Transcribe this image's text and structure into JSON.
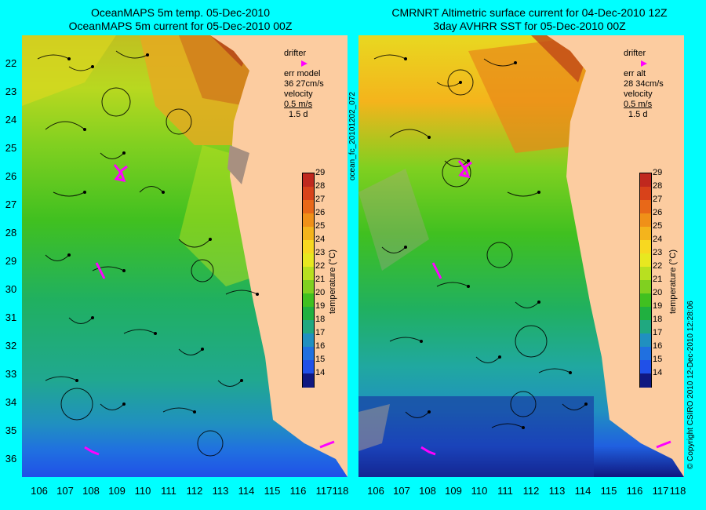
{
  "left_title": "OceanMAPS 5m temp. 05-Dec-2010\nOceanMAPS 5m current for 05-Dec-2010 00Z",
  "right_title": "CMRNRT Altimetric surface current for 04-Dec-2010 12Z\n3day AVHRR SST for 05-Dec-2010 00Z",
  "left_legend": {
    "drifter": "drifter",
    "err_label": "err model",
    "err_values": "36 27cm/s",
    "velocity": "velocity",
    "vel_scale": "0.5 m/s",
    "vel_days": "1.5 d"
  },
  "right_legend": {
    "drifter": "drifter",
    "err_label": "err alt",
    "err_values": "28 34cm/s",
    "velocity": "velocity",
    "vel_scale": "0.5 m/s",
    "vel_days": "1.5 d"
  },
  "y_ticks": [
    "22",
    "23",
    "24",
    "25",
    "26",
    "27",
    "28",
    "29",
    "30",
    "31",
    "32",
    "33",
    "34",
    "35",
    "36"
  ],
  "x_ticks": [
    "106",
    "107",
    "108",
    "109",
    "110",
    "111",
    "112",
    "113",
    "114",
    "115",
    "116",
    "117",
    "118"
  ],
  "colorbar": {
    "ticks": [
      "29",
      "28",
      "27",
      "26",
      "25",
      "24",
      "23",
      "22",
      "21",
      "20",
      "19",
      "18",
      "17",
      "16",
      "15",
      "14"
    ],
    "label": "temperature (°C)",
    "colors": [
      "#c0281e",
      "#d8421a",
      "#e86818",
      "#f09018",
      "#f4b41c",
      "#f8d820",
      "#e8e820",
      "#b8e020",
      "#80d020",
      "#40c020",
      "#20b040",
      "#20a880",
      "#2090c0",
      "#2070e0",
      "#2050e8",
      "#101880"
    ]
  },
  "sidebar_id": "ocean_fc_20101202_072",
  "copyright": "© Copyright CSIRO 2010   12-Dec-2010 12:28:06"
}
